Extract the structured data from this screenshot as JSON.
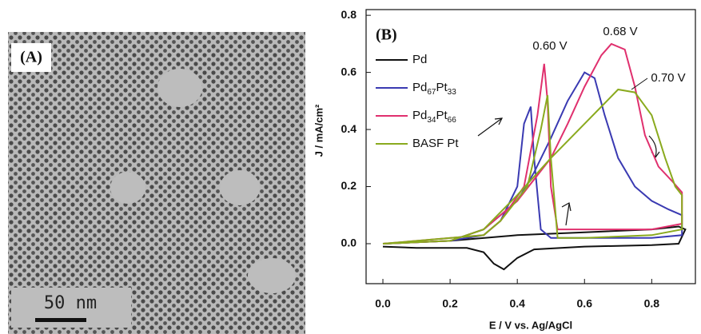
{
  "panel_a": {
    "label": "(A)",
    "scale_bar": "50 nm"
  },
  "chart_data": {
    "type": "line",
    "panel_label": "(B)",
    "x_label": "E / V vs. Ag/AgCl",
    "y_label": "J / mA/cm²",
    "xlim": [
      -0.05,
      0.93
    ],
    "ylim": [
      -0.14,
      0.82
    ],
    "xticks": [
      {
        "value": 0,
        "label": "0.0"
      },
      0.2,
      0.4,
      0.6,
      0.8
    ],
    "yticks": [
      {
        "value": 0,
        "label": "0.0"
      },
      0.2,
      0.4,
      0.6,
      0.8
    ],
    "legend": "upper left",
    "annotations": [
      "0.60 V",
      "0.68 V",
      "0.70 V"
    ],
    "series": [
      {
        "name": "Pd",
        "color": "#111111",
        "x": [
          0,
          0.2,
          0.4,
          0.6,
          0.8,
          0.88,
          0.9,
          0.88,
          0.8,
          0.6,
          0.45,
          0.4,
          0.36,
          0.33,
          0.3,
          0.25,
          0.1,
          0
        ],
        "values": [
          0,
          0.01,
          0.03,
          0.04,
          0.05,
          0.06,
          0.05,
          0,
          -0.005,
          -0.01,
          -0.02,
          -0.05,
          -0.09,
          -0.07,
          -0.03,
          -0.015,
          -0.015,
          -0.01
        ]
      },
      {
        "name": "Pd67Pt33",
        "color": "#3a3ab2",
        "x": [
          0,
          0.2,
          0.3,
          0.4,
          0.45,
          0.5,
          0.55,
          0.6,
          0.63,
          0.66,
          0.7,
          0.75,
          0.8,
          0.85,
          0.89,
          0.89,
          0.8,
          0.6,
          0.5,
          0.47,
          0.45,
          0.44,
          0.42,
          0.4,
          0.35,
          0.3,
          0.2,
          0
        ],
        "values": [
          0,
          0.01,
          0.05,
          0.15,
          0.25,
          0.37,
          0.5,
          0.6,
          0.58,
          0.45,
          0.3,
          0.2,
          0.15,
          0.12,
          0.1,
          0.03,
          0.02,
          0.02,
          0.02,
          0.05,
          0.3,
          0.48,
          0.42,
          0.2,
          0.08,
          0.03,
          0.01,
          0
        ]
      },
      {
        "name": "Pd34Pt66",
        "color": "#e0306e",
        "x": [
          0,
          0.2,
          0.3,
          0.4,
          0.5,
          0.55,
          0.6,
          0.65,
          0.68,
          0.72,
          0.75,
          0.78,
          0.82,
          0.86,
          0.89,
          0.89,
          0.8,
          0.6,
          0.52,
          0.5,
          0.49,
          0.48,
          0.46,
          0.42,
          0.35,
          0.3,
          0
        ],
        "values": [
          0,
          0.01,
          0.05,
          0.15,
          0.3,
          0.42,
          0.55,
          0.66,
          0.7,
          0.68,
          0.55,
          0.38,
          0.27,
          0.22,
          0.18,
          0.07,
          0.05,
          0.05,
          0.05,
          0.2,
          0.5,
          0.63,
          0.45,
          0.2,
          0.08,
          0.03,
          0
        ]
      },
      {
        "name": "BASF Pt",
        "color": "#8aaa1e",
        "x": [
          0,
          0.2,
          0.3,
          0.4,
          0.5,
          0.6,
          0.65,
          0.7,
          0.75,
          0.8,
          0.84,
          0.87,
          0.89,
          0.89,
          0.8,
          0.6,
          0.52,
          0.5,
          0.49,
          0.47,
          0.43,
          0.35,
          0.3,
          0
        ],
        "values": [
          0,
          0.01,
          0.05,
          0.17,
          0.3,
          0.42,
          0.48,
          0.54,
          0.53,
          0.45,
          0.3,
          0.2,
          0.17,
          0.05,
          0.03,
          0.02,
          0.02,
          0.3,
          0.52,
          0.4,
          0.2,
          0.08,
          0.03,
          0
        ]
      }
    ]
  }
}
